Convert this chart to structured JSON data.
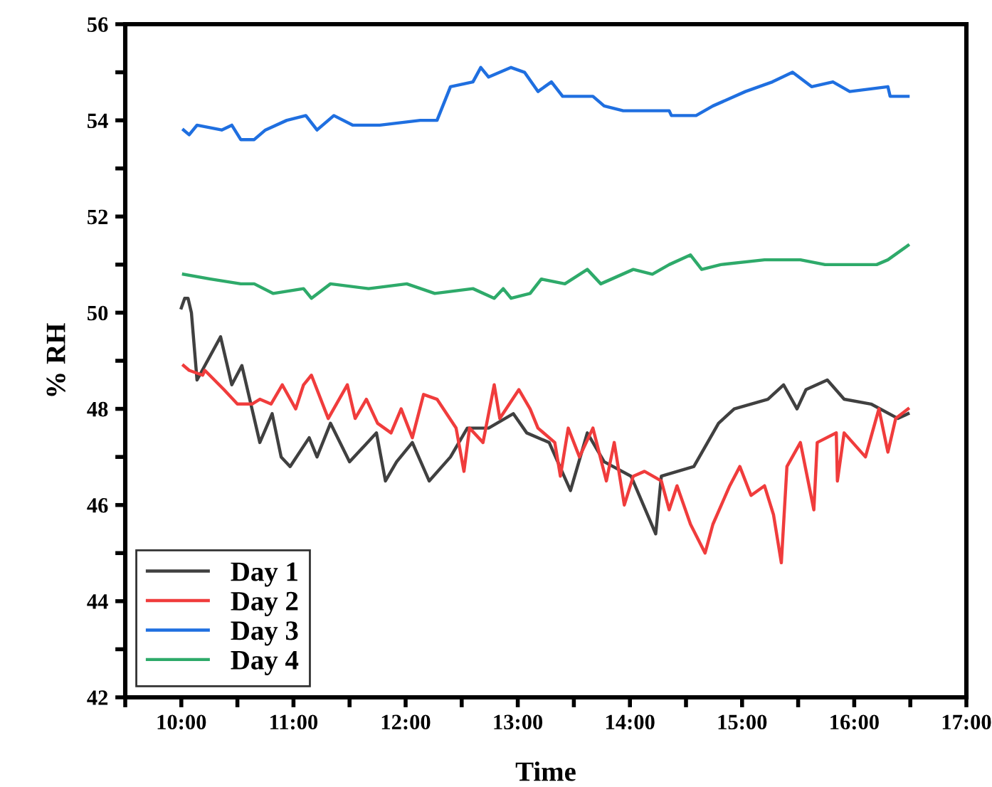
{
  "chart_data": {
    "type": "line",
    "xlabel": "Time",
    "ylabel": "% RH",
    "xlim": [
      9.5,
      17
    ],
    "ylim": [
      42,
      56
    ],
    "xticks": [
      {
        "value": 9.5,
        "label": null
      },
      {
        "value": 10,
        "label": "10:00"
      },
      {
        "value": 10.5,
        "label": null
      },
      {
        "value": 11,
        "label": "11:00"
      },
      {
        "value": 11.5,
        "label": null
      },
      {
        "value": 12,
        "label": "12:00"
      },
      {
        "value": 12.5,
        "label": null
      },
      {
        "value": 13,
        "label": "13:00"
      },
      {
        "value": 13.5,
        "label": null
      },
      {
        "value": 14,
        "label": "14:00"
      },
      {
        "value": 14.5,
        "label": null
      },
      {
        "value": 15,
        "label": "15:00"
      },
      {
        "value": 15.5,
        "label": null
      },
      {
        "value": 16,
        "label": "16:00"
      },
      {
        "value": 16.5,
        "label": null
      },
      {
        "value": 17,
        "label": "17:00"
      }
    ],
    "yticks": [
      42,
      {
        "value": 43,
        "label": null
      },
      44,
      {
        "value": 45,
        "label": null
      },
      46,
      {
        "value": 47,
        "label": null
      },
      48,
      {
        "value": 49,
        "label": null
      },
      50,
      {
        "value": 51,
        "label": null
      },
      52,
      {
        "value": 53,
        "label": null
      },
      54,
      {
        "value": 55,
        "label": null
      },
      56
    ],
    "grid": false,
    "legend": "bottom left",
    "marker": "none",
    "line_style": "solid",
    "series": [
      {
        "name": "Day 1",
        "color": "#404040",
        "x": [
          10.0,
          10.03,
          10.06,
          10.09,
          10.14,
          10.21,
          10.35,
          10.45,
          10.54,
          10.63,
          10.7,
          10.81,
          10.89,
          10.97,
          11.14,
          11.21,
          11.33,
          11.5,
          11.74,
          11.82,
          11.92,
          12.06,
          12.21,
          12.4,
          12.55,
          12.74,
          12.96,
          13.08,
          13.28,
          13.47,
          13.62,
          13.77,
          14.01,
          14.23,
          14.28,
          14.57,
          14.79,
          14.93,
          15.23,
          15.37,
          15.49,
          15.57,
          15.76,
          15.91,
          16.15,
          16.39,
          16.48
        ],
        "values": [
          50.1,
          50.3,
          50.3,
          50.0,
          48.6,
          48.9,
          49.5,
          48.5,
          48.9,
          48.0,
          47.3,
          47.9,
          47.0,
          46.8,
          47.4,
          47.0,
          47.7,
          46.9,
          47.5,
          46.5,
          46.9,
          47.3,
          46.5,
          47.0,
          47.6,
          47.6,
          47.9,
          47.5,
          47.3,
          46.3,
          47.5,
          46.9,
          46.6,
          45.4,
          46.6,
          46.8,
          47.7,
          48.0,
          48.2,
          48.5,
          48.0,
          48.4,
          48.6,
          48.2,
          48.1,
          47.8,
          47.9
        ]
      },
      {
        "name": "Day 2",
        "color": "#f03c3c",
        "x": [
          10.02,
          10.07,
          10.19,
          10.21,
          10.38,
          10.5,
          10.63,
          10.7,
          10.8,
          10.9,
          11.02,
          11.09,
          11.16,
          11.31,
          11.48,
          11.55,
          11.65,
          11.75,
          11.87,
          11.96,
          12.06,
          12.16,
          12.28,
          12.45,
          12.52,
          12.57,
          12.69,
          12.79,
          12.84,
          13.01,
          13.11,
          13.18,
          13.33,
          13.38,
          13.45,
          13.55,
          13.67,
          13.79,
          13.86,
          13.95,
          14.03,
          14.13,
          14.28,
          14.35,
          14.42,
          14.54,
          14.67,
          14.74,
          14.89,
          14.98,
          15.08,
          15.2,
          15.28,
          15.35,
          15.4,
          15.52,
          15.64,
          15.67,
          15.84,
          15.85,
          15.91,
          16.1,
          16.22,
          16.3,
          16.37,
          16.48
        ],
        "values": [
          48.9,
          48.8,
          48.7,
          48.8,
          48.4,
          48.1,
          48.1,
          48.2,
          48.1,
          48.5,
          48.0,
          48.5,
          48.7,
          47.8,
          48.5,
          47.8,
          48.2,
          47.7,
          47.5,
          48.0,
          47.4,
          48.3,
          48.2,
          47.6,
          46.7,
          47.6,
          47.3,
          48.5,
          47.8,
          48.4,
          48.0,
          47.6,
          47.3,
          46.6,
          47.6,
          47.0,
          47.6,
          46.5,
          47.3,
          46.0,
          46.6,
          46.7,
          46.5,
          45.9,
          46.4,
          45.6,
          45.0,
          45.6,
          46.4,
          46.8,
          46.2,
          46.4,
          45.8,
          44.8,
          46.8,
          47.3,
          45.9,
          47.3,
          47.5,
          46.5,
          47.5,
          47.0,
          48.0,
          47.1,
          47.8,
          48.0
        ]
      },
      {
        "name": "Day 3",
        "color": "#1f6fe0",
        "x": [
          10.02,
          10.07,
          10.14,
          10.36,
          10.45,
          10.53,
          10.65,
          10.75,
          10.94,
          11.11,
          11.21,
          11.36,
          11.53,
          11.77,
          12.13,
          12.28,
          12.4,
          12.6,
          12.67,
          12.74,
          12.94,
          13.06,
          13.18,
          13.3,
          13.4,
          13.67,
          13.77,
          13.94,
          14.16,
          14.35,
          14.37,
          14.59,
          14.74,
          15.03,
          15.27,
          15.45,
          15.62,
          15.81,
          15.96,
          16.3,
          16.32,
          16.48
        ],
        "values": [
          53.8,
          53.7,
          53.9,
          53.8,
          53.9,
          53.6,
          53.6,
          53.8,
          54.0,
          54.1,
          53.8,
          54.1,
          53.9,
          53.9,
          54.0,
          54.0,
          54.7,
          54.8,
          55.1,
          54.9,
          55.1,
          55.0,
          54.6,
          54.8,
          54.5,
          54.5,
          54.3,
          54.2,
          54.2,
          54.2,
          54.1,
          54.1,
          54.3,
          54.6,
          54.8,
          55.0,
          54.7,
          54.8,
          54.6,
          54.7,
          54.5,
          54.5
        ]
      },
      {
        "name": "Day 4",
        "color": "#2eaa6a",
        "x": [
          10.02,
          10.26,
          10.53,
          10.65,
          10.82,
          11.09,
          11.16,
          11.33,
          11.67,
          12.01,
          12.26,
          12.6,
          12.79,
          12.87,
          12.94,
          13.11,
          13.21,
          13.42,
          13.62,
          13.74,
          14.03,
          14.2,
          14.35,
          14.54,
          14.64,
          14.81,
          15.2,
          15.52,
          15.74,
          16.2,
          16.3,
          16.48
        ],
        "values": [
          50.8,
          50.7,
          50.6,
          50.6,
          50.4,
          50.5,
          50.3,
          50.6,
          50.5,
          50.6,
          50.4,
          50.5,
          50.3,
          50.5,
          50.3,
          50.4,
          50.7,
          50.6,
          50.9,
          50.6,
          50.9,
          50.8,
          51.0,
          51.2,
          50.9,
          51.0,
          51.1,
          51.1,
          51.0,
          51.0,
          51.1,
          51.4
        ]
      }
    ]
  }
}
